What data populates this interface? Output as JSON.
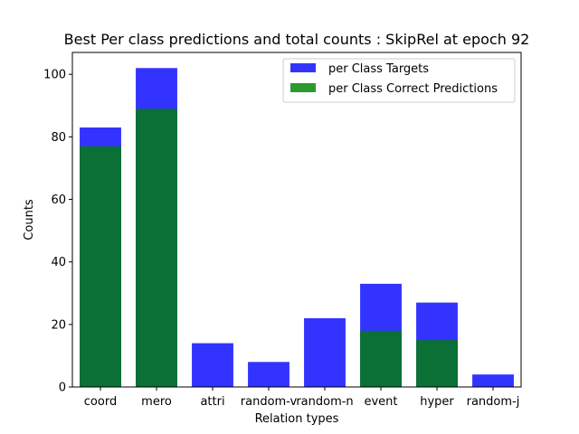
{
  "chart_data": {
    "type": "bar",
    "title": "Best Per class predictions and total counts : SkipRel at epoch 92",
    "xlabel": "Relation types",
    "ylabel": "Counts",
    "categories": [
      "coord",
      "mero",
      "attri",
      "random-v",
      "random-n",
      "event",
      "hyper",
      "random-j"
    ],
    "ylim": [
      0,
      107
    ],
    "yticks": [
      0,
      20,
      40,
      60,
      80,
      100
    ],
    "grid": false,
    "legend_position": "top-right",
    "overlay": true,
    "series": [
      {
        "name": "per Class Targets",
        "color": "#3333ff",
        "values": [
          83,
          102,
          14,
          8,
          22,
          33,
          27,
          4
        ]
      },
      {
        "name": "per Class Correct Predictions",
        "color": "#0b7035",
        "legend_color": "#2e992e",
        "values": [
          77,
          89,
          0,
          0,
          0,
          18,
          15,
          0
        ]
      }
    ]
  }
}
